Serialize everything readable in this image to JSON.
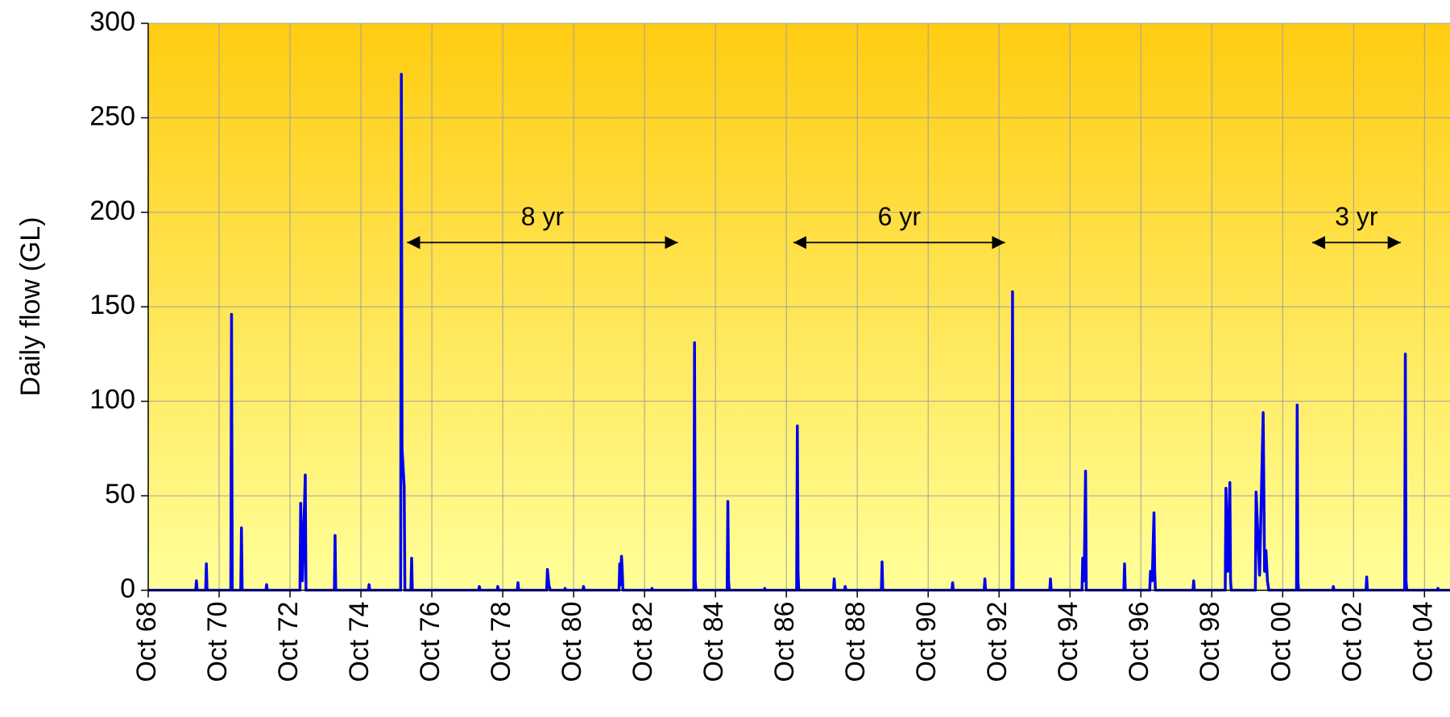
{
  "chart_data": {
    "type": "line",
    "y_label": "Daily flow (GL)",
    "x": [
      1968.75,
      1970.09,
      1970.11,
      1970.13,
      1970.37,
      1970.39,
      1970.41,
      1971.08,
      1971.1,
      1971.12,
      1971.36,
      1971.38,
      1971.4,
      1972.07,
      1972.09,
      1972.11,
      1973.03,
      1973.05,
      1973.1,
      1973.18,
      1973.2,
      1974.0,
      1974.02,
      1974.04,
      1974.96,
      1974.98,
      1975.0,
      1975.87,
      1975.89,
      1975.91,
      1975.97,
      1975.99,
      1976.16,
      1976.18,
      1976.2,
      1978.07,
      1978.09,
      1978.11,
      1978.59,
      1978.61,
      1978.63,
      1979.16,
      1979.18,
      1979.2,
      1979.99,
      1980.01,
      1980.05,
      1980.09,
      1980.49,
      1980.51,
      1980.53,
      1981.01,
      1981.03,
      1981.05,
      1982.03,
      1982.05,
      1982.07,
      1982.1,
      1982.12,
      1982.14,
      1982.94,
      1982.96,
      1982.98,
      1984.14,
      1984.16,
      1984.18,
      1984.2,
      1985.08,
      1985.1,
      1985.12,
      1985.14,
      1986.12,
      1986.14,
      1986.16,
      1987.04,
      1987.06,
      1987.08,
      1987.1,
      1988.08,
      1988.1,
      1988.12,
      1988.39,
      1988.41,
      1988.43,
      1989.43,
      1989.45,
      1989.47,
      1991.42,
      1991.44,
      1991.46,
      1992.33,
      1992.35,
      1992.37,
      1993.11,
      1993.13,
      1993.15,
      1994.18,
      1994.2,
      1994.22,
      1995.09,
      1995.11,
      1995.15,
      1995.19,
      1995.21,
      1996.27,
      1996.29,
      1996.31,
      1997.0,
      1997.02,
      1997.07,
      1997.12,
      1997.14,
      1997.16,
      1998.22,
      1998.24,
      1998.26,
      1999.13,
      1999.15,
      1999.2,
      1999.26,
      1999.28,
      1999.3,
      1999.98,
      2000.0,
      2000.1,
      2000.2,
      2000.24,
      2000.28,
      2000.32,
      2000.36,
      2001.14,
      2001.16,
      2001.18,
      2001.2,
      2002.16,
      2002.18,
      2002.2,
      2003.1,
      2003.12,
      2003.14,
      2004.19,
      2004.21,
      2004.23,
      2004.25,
      2005.11,
      2005.13,
      2005.15,
      2005.47
    ],
    "series": [
      {
        "name": "Daily flow",
        "color": "#0000ee",
        "values": [
          0,
          0,
          5,
          0,
          0,
          14,
          0,
          0,
          146,
          0,
          0,
          33,
          0,
          0,
          3,
          0,
          0,
          46,
          5,
          61,
          0,
          0,
          29,
          0,
          0,
          3,
          0,
          0,
          273,
          75,
          55,
          0,
          0,
          17,
          0,
          0,
          2,
          0,
          0,
          2,
          0,
          0,
          4,
          0,
          0,
          11,
          3,
          0,
          0,
          1,
          0,
          0,
          2,
          0,
          0,
          14,
          3,
          18,
          11,
          0,
          0,
          1,
          0,
          0,
          131,
          5,
          0,
          0,
          47,
          5,
          0,
          0,
          1,
          0,
          0,
          87,
          9,
          0,
          0,
          6,
          0,
          0,
          2,
          0,
          0,
          15,
          0,
          0,
          4,
          0,
          0,
          6,
          0,
          0,
          158,
          0,
          0,
          6,
          0,
          0,
          17,
          5,
          63,
          0,
          0,
          14,
          0,
          0,
          10,
          5,
          41,
          10,
          0,
          0,
          5,
          0,
          0,
          54,
          10,
          57,
          5,
          0,
          0,
          52,
          8,
          94,
          10,
          21,
          5,
          0,
          0,
          98,
          5,
          0,
          0,
          2,
          0,
          0,
          7,
          0,
          0,
          125,
          5,
          0,
          0,
          1,
          0,
          0
        ]
      }
    ],
    "xlim": [
      1968.75,
      2005.47
    ],
    "xticks": [
      {
        "value": 1968.75,
        "label": "Oct 68"
      },
      {
        "value": 1970.75,
        "label": "Oct 70"
      },
      {
        "value": 1972.75,
        "label": "Oct 72"
      },
      {
        "value": 1974.75,
        "label": "Oct 74"
      },
      {
        "value": 1976.75,
        "label": "Oct 76"
      },
      {
        "value": 1978.75,
        "label": "Oct 78"
      },
      {
        "value": 1980.75,
        "label": "Oct 80"
      },
      {
        "value": 1982.75,
        "label": "Oct 82"
      },
      {
        "value": 1984.75,
        "label": "Oct 84"
      },
      {
        "value": 1986.75,
        "label": "Oct 86"
      },
      {
        "value": 1988.75,
        "label": "Oct 88"
      },
      {
        "value": 1990.75,
        "label": "Oct 90"
      },
      {
        "value": 1992.75,
        "label": "Oct 92"
      },
      {
        "value": 1994.75,
        "label": "Oct 94"
      },
      {
        "value": 1996.75,
        "label": "Oct 96"
      },
      {
        "value": 1998.75,
        "label": "Oct 98"
      },
      {
        "value": 2000.75,
        "label": "Oct 00"
      },
      {
        "value": 2002.75,
        "label": "Oct 02"
      },
      {
        "value": 2004.75,
        "label": "Oct 04"
      }
    ],
    "ylim": [
      0,
      300
    ],
    "yticks": [
      0,
      50,
      100,
      150,
      200,
      250,
      300
    ],
    "grid": true,
    "annotations": [
      {
        "text": "8 yr",
        "x1": 1976.05,
        "x2": 1983.69,
        "y": 184
      },
      {
        "text": "6 yr",
        "x1": 1986.95,
        "x2": 1992.92,
        "y": 184
      },
      {
        "text": "3 yr",
        "x1": 2001.58,
        "x2": 2004.08,
        "y": 184
      }
    ]
  }
}
